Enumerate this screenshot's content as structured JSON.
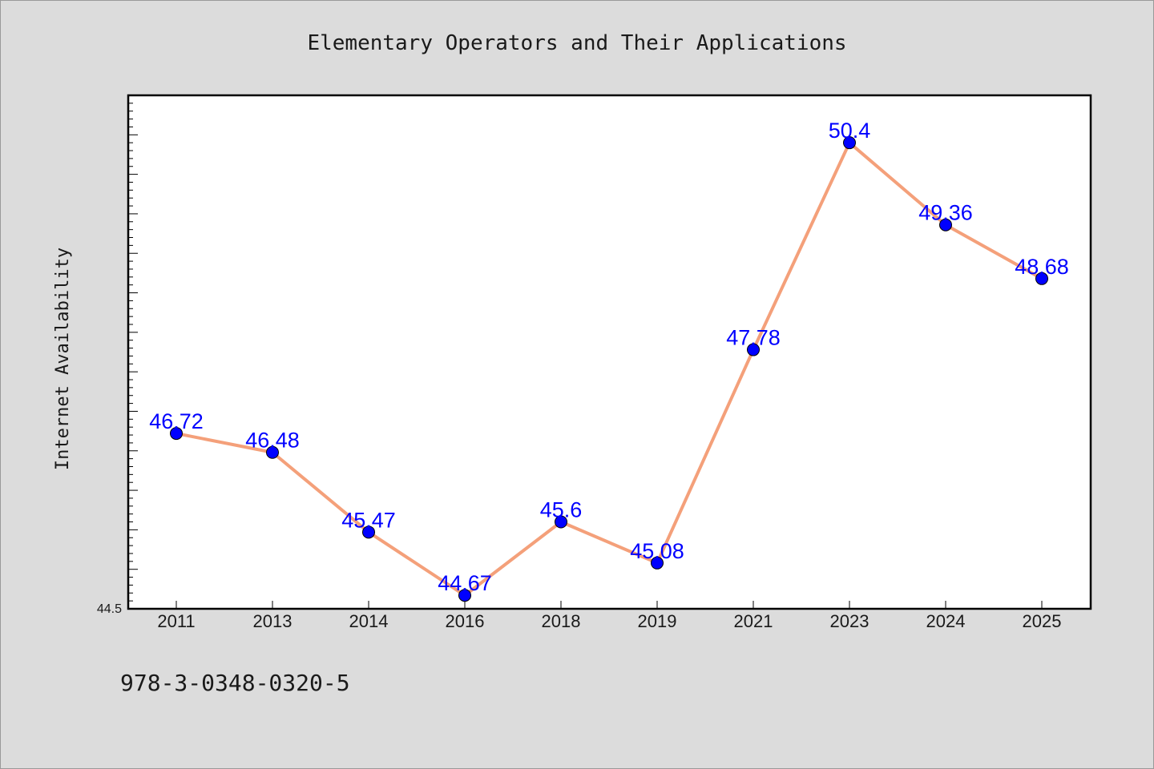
{
  "footer": {
    "isbn": "978-3-0348-0320-5"
  },
  "chart_data": {
    "type": "line",
    "title": "Elementary Operators and Their Applications",
    "xlabel": "",
    "ylabel": "Internet Availability",
    "categories": [
      "2011",
      "2013",
      "2014",
      "2016",
      "2018",
      "2019",
      "2021",
      "2023",
      "2024",
      "2025"
    ],
    "series": [
      {
        "values": [
          46.72,
          46.48,
          45.47,
          44.67,
          45.6,
          45.08,
          47.78,
          50.4,
          49.36,
          48.68
        ],
        "labels": [
          "46.72",
          "46.48",
          "45.47",
          "44.67",
          "45.6",
          "45.08",
          "47.78",
          "50.4",
          "49.36",
          "48.68"
        ],
        "line_color": "#f4a07a",
        "marker_color": "#0000ff"
      }
    ],
    "ylim": [
      44.5,
      51.0
    ],
    "yticks_labeled": [
      "44.5"
    ],
    "grid": false,
    "legend": "none",
    "data_label_color": "#0000ff",
    "background": "#ffffff",
    "figure_background": "#dcdcdc"
  }
}
